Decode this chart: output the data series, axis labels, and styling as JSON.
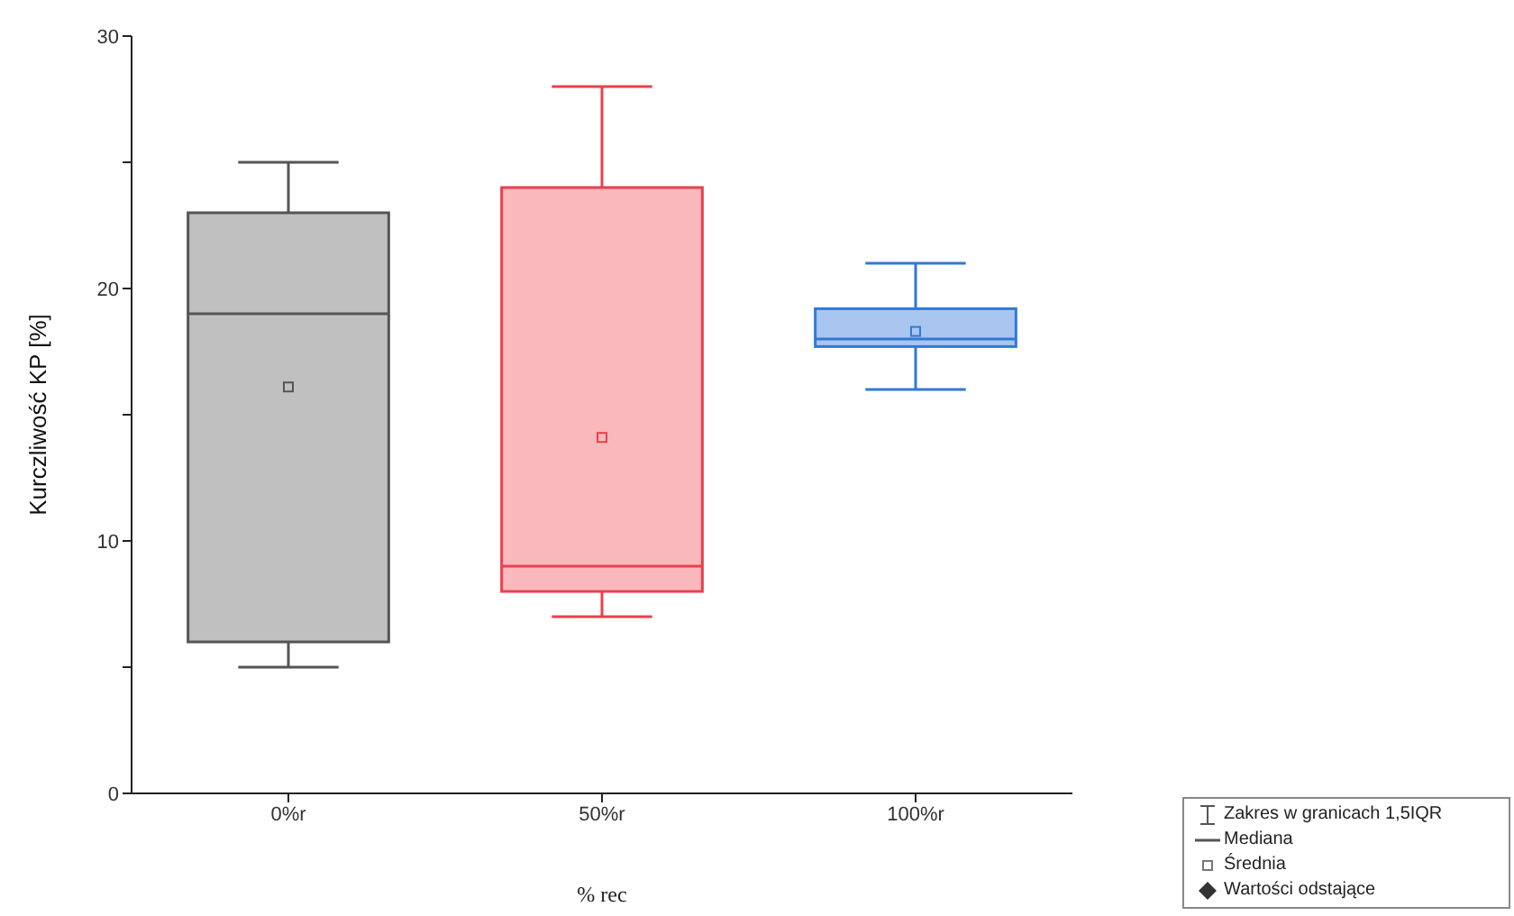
{
  "chart_data": {
    "type": "box",
    "xlabel": "% rec",
    "ylabel": "Kurczliwość KP [%]",
    "categories": [
      "0%r",
      "50%r",
      "100%r"
    ],
    "colors": [
      "#c0c0c0",
      "#f9b9bc",
      "#a9c6f0"
    ],
    "boxes": [
      {
        "low": 5,
        "q1": 6,
        "median": 19,
        "q3": 23,
        "high": 25,
        "mean": 16.1
      },
      {
        "low": 7,
        "q1": 8,
        "median": 9,
        "q3": 24,
        "high": 28,
        "mean": 14.1
      },
      {
        "low": 16,
        "q1": 17.7,
        "median": 18,
        "q3": 19.2,
        "high": 21,
        "mean": 18.3
      }
    ],
    "ylim": [
      0,
      30
    ],
    "yticks": [
      0,
      {
        "value": 5,
        "label": null
      },
      10,
      {
        "value": 15,
        "label": null
      },
      20,
      {
        "value": 25,
        "label": null
      },
      30
    ],
    "annotations": [
      "Zakres w granicach 1,5IQR",
      "Mediana",
      "Średnia",
      "Wartości odstające"
    ]
  }
}
